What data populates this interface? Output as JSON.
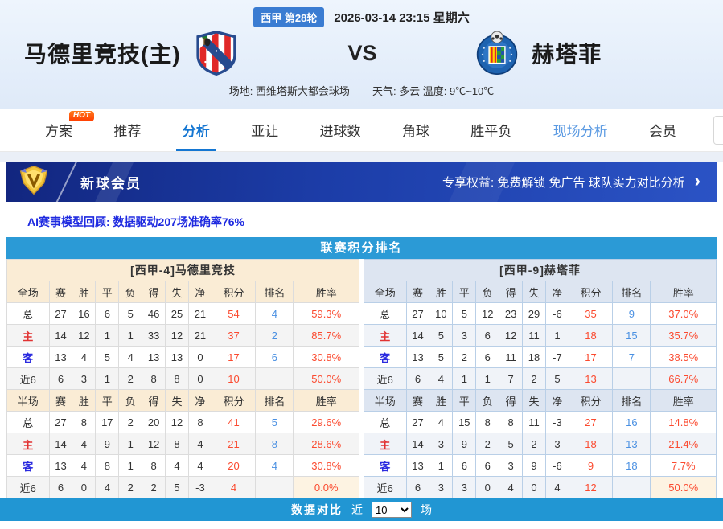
{
  "header": {
    "league_badge": "西甲 第28轮",
    "datetime": "2026-03-14 23:15 星期六",
    "home_team": "马德里竞技(主)",
    "vs": "VS",
    "away_team": "赫塔菲",
    "venue_line": "场地: 西维塔斯大都会球场",
    "weather_line": "天气: 多云 温度: 9℃~10℃"
  },
  "nav": {
    "hot_badge": "HOT",
    "tabs": [
      {
        "label": "方案"
      },
      {
        "label": "推荐"
      },
      {
        "label": "分析"
      },
      {
        "label": "亚让"
      },
      {
        "label": "进球数"
      },
      {
        "label": "角球"
      },
      {
        "label": "胜平负"
      },
      {
        "label": "现场分析"
      },
      {
        "label": "会员"
      }
    ]
  },
  "member_banner": {
    "title": "新球会员",
    "benefits": "专享权益: 免费解锁 免广告 球队实力对比分析",
    "chevron": "›"
  },
  "ai_line": "AI赛事模型回顾: 数据驱动207场准确率76%",
  "section_title": "联赛积分排名",
  "standings": {
    "columns_full": [
      "全场",
      "赛",
      "胜",
      "平",
      "负",
      "得",
      "失",
      "净",
      "积分",
      "排名",
      "胜率"
    ],
    "columns_half": [
      "半场",
      "赛",
      "胜",
      "平",
      "负",
      "得",
      "失",
      "净",
      "积分",
      "排名",
      "胜率"
    ],
    "home": {
      "title": "[西甲-4]马德里竞技",
      "full": [
        [
          "总",
          "27",
          "16",
          "6",
          "5",
          "46",
          "25",
          "21",
          "54",
          "4",
          "59.3%"
        ],
        [
          "主",
          "14",
          "12",
          "1",
          "1",
          "33",
          "12",
          "21",
          "37",
          "2",
          "85.7%"
        ],
        [
          "客",
          "13",
          "4",
          "5",
          "4",
          "13",
          "13",
          "0",
          "17",
          "6",
          "30.8%"
        ],
        [
          "近6",
          "6",
          "3",
          "1",
          "2",
          "8",
          "8",
          "0",
          "10",
          "",
          "50.0%"
        ]
      ],
      "half": [
        [
          "总",
          "27",
          "8",
          "17",
          "2",
          "20",
          "12",
          "8",
          "41",
          "5",
          "29.6%"
        ],
        [
          "主",
          "14",
          "4",
          "9",
          "1",
          "12",
          "8",
          "4",
          "21",
          "8",
          "28.6%"
        ],
        [
          "客",
          "13",
          "4",
          "8",
          "1",
          "8",
          "4",
          "4",
          "20",
          "4",
          "30.8%"
        ],
        [
          "近6",
          "6",
          "0",
          "4",
          "2",
          "2",
          "5",
          "-3",
          "4",
          "",
          "0.0%"
        ]
      ]
    },
    "away": {
      "title": "[西甲-9]赫塔菲",
      "full": [
        [
          "总",
          "27",
          "10",
          "5",
          "12",
          "23",
          "29",
          "-6",
          "35",
          "9",
          "37.0%"
        ],
        [
          "主",
          "14",
          "5",
          "3",
          "6",
          "12",
          "11",
          "1",
          "18",
          "15",
          "35.7%"
        ],
        [
          "客",
          "13",
          "5",
          "2",
          "6",
          "11",
          "18",
          "-7",
          "17",
          "7",
          "38.5%"
        ],
        [
          "近6",
          "6",
          "4",
          "1",
          "1",
          "7",
          "2",
          "5",
          "13",
          "",
          "66.7%"
        ]
      ],
      "half": [
        [
          "总",
          "27",
          "4",
          "15",
          "8",
          "8",
          "11",
          "-3",
          "27",
          "16",
          "14.8%"
        ],
        [
          "主",
          "14",
          "3",
          "9",
          "2",
          "5",
          "2",
          "3",
          "18",
          "13",
          "21.4%"
        ],
        [
          "客",
          "13",
          "1",
          "6",
          "6",
          "3",
          "9",
          "-6",
          "9",
          "18",
          "7.7%"
        ],
        [
          "近6",
          "6",
          "3",
          "3",
          "0",
          "4",
          "0",
          "4",
          "12",
          "",
          "50.0%"
        ]
      ]
    }
  },
  "footer": {
    "compare_label": "数据对比",
    "near_label": "近",
    "select_value": "10",
    "matches_label": "场"
  },
  "colors": {
    "section_bar_blue": "#2b9ad6",
    "footer_bar_blue": "#2196d3",
    "banner_blue": "#1c3da8",
    "badge_blue": "#3a7cd2",
    "active_tab_blue": "#1476d2",
    "points_red": "#fb4a2f",
    "rank_blue": "#4a90e2",
    "home_label_red": "#e13232",
    "away_label_blue": "#2b2bdf",
    "home_header_cream": "#faecd5",
    "away_header_blue": "#dde5f1",
    "ai_text_blue": "#1e2ae0",
    "hot_badge_orange": "#ff4e00"
  }
}
